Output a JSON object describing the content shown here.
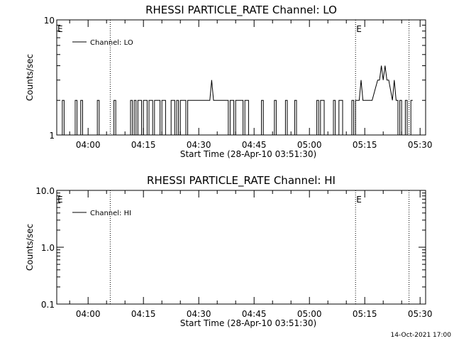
{
  "footer_timestamp": "14-Oct-2021 17:00",
  "chart_data": [
    {
      "type": "line",
      "title": "RHESSI PARTICLE_RATE Channel: LO",
      "xlabel": "Start Time (28-Apr-10 03:51:30)",
      "ylabel": "Counts/sec",
      "yscale": "log",
      "ylim": [
        1,
        10
      ],
      "ytick_values": [
        1,
        10
      ],
      "ytick_labels": [
        "1",
        "10"
      ],
      "xlim": [
        "03:51:30",
        "05:31:30"
      ],
      "xtick_values": [
        "04:00",
        "04:15",
        "04:30",
        "04:45",
        "05:00",
        "05:15",
        "05:30"
      ],
      "xtick_labels": [
        "04:00",
        "04:15",
        "04:30",
        "04:45",
        "05:00",
        "05:15",
        "05:30"
      ],
      "vlines": [
        "04:06:00",
        "05:12:30",
        "05:27:00"
      ],
      "event_markers": [
        {
          "time": "03:51:30",
          "label": "E"
        },
        {
          "time": "05:12:30",
          "label": "E"
        }
      ],
      "legend_position": "top-left",
      "series": [
        {
          "name": "Channel: LO",
          "points": [
            [
              "03:51:30",
              1
            ],
            [
              "03:53:00",
              1
            ],
            [
              "03:53:00",
              2
            ],
            [
              "03:53:30",
              2
            ],
            [
              "03:53:30",
              1
            ],
            [
              "03:56:30",
              1
            ],
            [
              "03:56:30",
              2
            ],
            [
              "03:57:00",
              2
            ],
            [
              "03:57:00",
              1
            ],
            [
              "03:58:00",
              1
            ],
            [
              "03:58:00",
              2
            ],
            [
              "03:58:30",
              2
            ],
            [
              "03:58:30",
              1
            ],
            [
              "04:02:30",
              1
            ],
            [
              "04:02:30",
              2
            ],
            [
              "04:03:00",
              2
            ],
            [
              "04:03:00",
              1
            ],
            [
              "04:07:00",
              1
            ],
            [
              "04:07:00",
              2
            ],
            [
              "04:07:30",
              2
            ],
            [
              "04:07:30",
              1
            ],
            [
              "04:11:30",
              1
            ],
            [
              "04:11:30",
              2
            ],
            [
              "04:12:00",
              2
            ],
            [
              "04:12:00",
              1
            ],
            [
              "04:12:30",
              1
            ],
            [
              "04:12:30",
              2
            ],
            [
              "04:13:00",
              2
            ],
            [
              "04:13:00",
              1
            ],
            [
              "04:13:30",
              1
            ],
            [
              "04:13:30",
              2
            ],
            [
              "04:14:30",
              2
            ],
            [
              "04:14:30",
              1
            ],
            [
              "04:15:00",
              1
            ],
            [
              "04:15:00",
              2
            ],
            [
              "04:16:00",
              2
            ],
            [
              "04:16:00",
              1
            ],
            [
              "04:16:30",
              1
            ],
            [
              "04:16:30",
              2
            ],
            [
              "04:17:30",
              2
            ],
            [
              "04:17:30",
              1
            ],
            [
              "04:18:00",
              1
            ],
            [
              "04:18:00",
              2
            ],
            [
              "04:19:30",
              2
            ],
            [
              "04:19:30",
              1
            ],
            [
              "04:20:00",
              1
            ],
            [
              "04:20:00",
              2
            ],
            [
              "04:21:00",
              2
            ],
            [
              "04:21:00",
              1
            ],
            [
              "04:22:30",
              1
            ],
            [
              "04:22:30",
              2
            ],
            [
              "04:23:30",
              2
            ],
            [
              "04:23:30",
              1
            ],
            [
              "04:24:00",
              1
            ],
            [
              "04:24:00",
              2
            ],
            [
              "04:24:30",
              2
            ],
            [
              "04:24:30",
              1
            ],
            [
              "04:25:00",
              1
            ],
            [
              "04:25:00",
              2
            ],
            [
              "04:26:30",
              2
            ],
            [
              "04:26:30",
              1
            ],
            [
              "04:27:00",
              1
            ],
            [
              "04:27:00",
              2
            ],
            [
              "04:33:00",
              2
            ],
            [
              "04:33:30",
              3
            ],
            [
              "04:34:00",
              2
            ],
            [
              "04:38:00",
              2
            ],
            [
              "04:38:00",
              1
            ],
            [
              "04:38:30",
              1
            ],
            [
              "04:38:30",
              2
            ],
            [
              "04:39:30",
              2
            ],
            [
              "04:39:30",
              1
            ],
            [
              "04:40:00",
              1
            ],
            [
              "04:40:00",
              2
            ],
            [
              "04:42:00",
              2
            ],
            [
              "04:42:00",
              1
            ],
            [
              "04:42:30",
              1
            ],
            [
              "04:42:30",
              2
            ],
            [
              "04:43:30",
              2
            ],
            [
              "04:43:30",
              1
            ],
            [
              "04:47:00",
              1
            ],
            [
              "04:47:00",
              2
            ],
            [
              "04:47:30",
              2
            ],
            [
              "04:47:30",
              1
            ],
            [
              "04:50:30",
              1
            ],
            [
              "04:50:30",
              2
            ],
            [
              "04:51:00",
              2
            ],
            [
              "04:51:00",
              1
            ],
            [
              "04:53:30",
              1
            ],
            [
              "04:53:30",
              2
            ],
            [
              "04:54:00",
              2
            ],
            [
              "04:54:00",
              1
            ],
            [
              "04:56:00",
              1
            ],
            [
              "04:56:00",
              2
            ],
            [
              "04:56:30",
              2
            ],
            [
              "04:56:30",
              1
            ],
            [
              "05:02:00",
              1
            ],
            [
              "05:02:00",
              2
            ],
            [
              "05:02:30",
              2
            ],
            [
              "05:02:30",
              1
            ],
            [
              "05:03:00",
              1
            ],
            [
              "05:03:00",
              2
            ],
            [
              "05:04:00",
              2
            ],
            [
              "05:04:00",
              1
            ],
            [
              "05:06:30",
              1
            ],
            [
              "05:06:30",
              2
            ],
            [
              "05:07:00",
              2
            ],
            [
              "05:07:00",
              1
            ],
            [
              "05:08:00",
              1
            ],
            [
              "05:08:00",
              2
            ],
            [
              "05:09:00",
              2
            ],
            [
              "05:09:00",
              1
            ],
            [
              "05:11:30",
              1
            ],
            [
              "05:11:30",
              2
            ],
            [
              "05:12:00",
              2
            ],
            [
              "05:12:00",
              1
            ],
            [
              "05:12:30",
              1
            ],
            [
              "05:12:30",
              2
            ],
            [
              "05:13:30",
              2
            ],
            [
              "05:14:00",
              3
            ],
            [
              "05:14:30",
              2
            ],
            [
              "05:17:00",
              2
            ],
            [
              "05:18:30",
              3
            ],
            [
              "05:19:00",
              3
            ],
            [
              "05:19:30",
              4
            ],
            [
              "05:20:00",
              3
            ],
            [
              "05:20:30",
              4
            ],
            [
              "05:21:00",
              3
            ],
            [
              "05:21:30",
              3
            ],
            [
              "05:22:30",
              2
            ],
            [
              "05:23:00",
              3
            ],
            [
              "05:23:30",
              2
            ],
            [
              "05:24:00",
              2
            ],
            [
              "05:24:00",
              1
            ],
            [
              "05:24:30",
              1
            ],
            [
              "05:24:30",
              2
            ],
            [
              "05:25:00",
              2
            ],
            [
              "05:25:00",
              1
            ],
            [
              "05:26:00",
              1
            ],
            [
              "05:26:00",
              2
            ],
            [
              "05:26:30",
              2
            ],
            [
              "05:26:30",
              1
            ],
            [
              "05:27:30",
              1
            ],
            [
              "05:27:30",
              2
            ],
            [
              "05:28:00",
              2
            ]
          ]
        }
      ]
    },
    {
      "type": "line",
      "title": "RHESSI PARTICLE_RATE Channel: HI",
      "xlabel": "Start Time (28-Apr-10 03:51:30)",
      "ylabel": "Counts/sec",
      "yscale": "log",
      "ylim": [
        0.1,
        10
      ],
      "ytick_values": [
        0.1,
        1,
        10
      ],
      "ytick_labels": [
        "0.1",
        "1.0",
        "10.0"
      ],
      "xlim": [
        "03:51:30",
        "05:31:30"
      ],
      "xtick_values": [
        "04:00",
        "04:15",
        "04:30",
        "04:45",
        "05:00",
        "05:15",
        "05:30"
      ],
      "xtick_labels": [
        "04:00",
        "04:15",
        "04:30",
        "04:45",
        "05:00",
        "05:15",
        "05:30"
      ],
      "vlines": [
        "04:06:00",
        "05:12:30",
        "05:27:00"
      ],
      "event_markers": [
        {
          "time": "03:51:30",
          "label": "E"
        },
        {
          "time": "05:12:30",
          "label": "E"
        }
      ],
      "legend_position": "top-left",
      "series": [
        {
          "name": "Channel: HI",
          "points": []
        }
      ]
    }
  ]
}
